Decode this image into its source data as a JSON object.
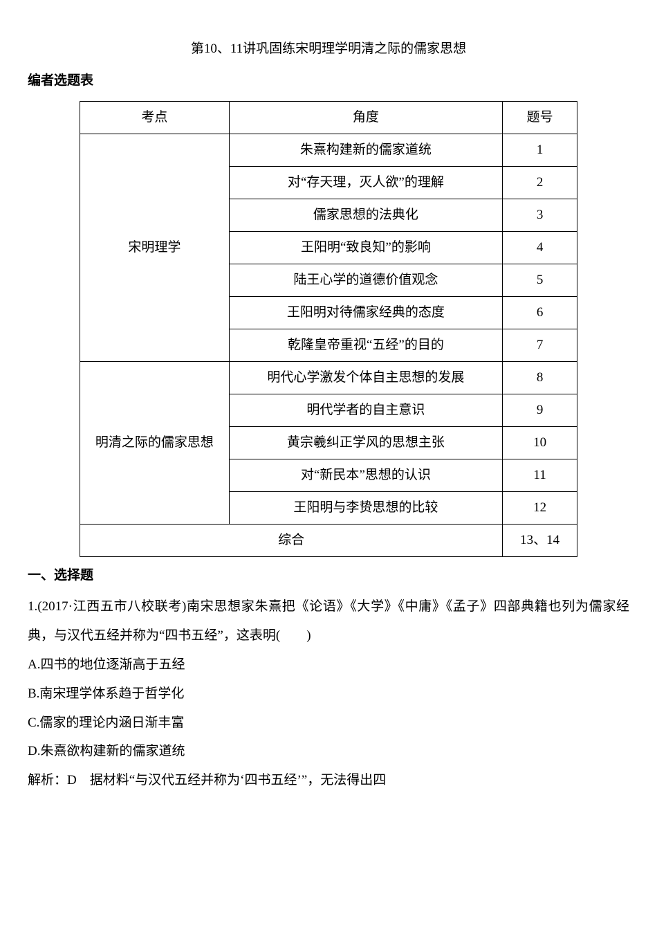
{
  "title": "第10、11讲巩固练宋明理学明清之际的儒家思想",
  "subtitle": "编者选题表",
  "table": {
    "headers": [
      "考点",
      "角度",
      "题号"
    ],
    "group1": {
      "topic": "宋明理学",
      "rows": [
        {
          "angle": "朱熹构建新的儒家道统",
          "num": "1"
        },
        {
          "angle": "对“存天理，灭人欲”的理解",
          "num": "2"
        },
        {
          "angle": "儒家思想的法典化",
          "num": "3"
        },
        {
          "angle": "王阳明“致良知”的影响",
          "num": "4"
        },
        {
          "angle": "陆王心学的道德价值观念",
          "num": "5"
        },
        {
          "angle": "王阳明对待儒家经典的态度",
          "num": "6"
        },
        {
          "angle": "乾隆皇帝重视“五经”的目的",
          "num": "7"
        }
      ]
    },
    "group2": {
      "topic": "明清之际的儒家思想",
      "rows": [
        {
          "angle": "明代心学激发个体自主思想的发展",
          "num": "8"
        },
        {
          "angle": "明代学者的自主意识",
          "num": "9"
        },
        {
          "angle": "黄宗羲纠正学风的思想主张",
          "num": "10"
        },
        {
          "angle": "对“新民本”思想的认识",
          "num": "11"
        },
        {
          "angle": "王阳明与李贽思想的比较",
          "num": "12"
        }
      ]
    },
    "summary": {
      "label": "综合",
      "num": "13、14"
    }
  },
  "section1_header": "一、选择题",
  "q1": {
    "stem": "1.(2017·江西五市八校联考)南宋思想家朱熹把《论语》《大学》《中庸》《孟子》四部典籍也列为儒家经典，与汉代五经并称为“四书五经”，这表明(　　)",
    "optA": "A.四书的地位逐渐高于五经",
    "optB": "B.南宋理学体系趋于哲学化",
    "optC": "C.儒家的理论内涵日渐丰富",
    "optD": "D.朱熹欲构建新的儒家道统",
    "analysis": "解析：D　据材料“与汉代五经并称为‘四书五经’”，无法得出四"
  }
}
